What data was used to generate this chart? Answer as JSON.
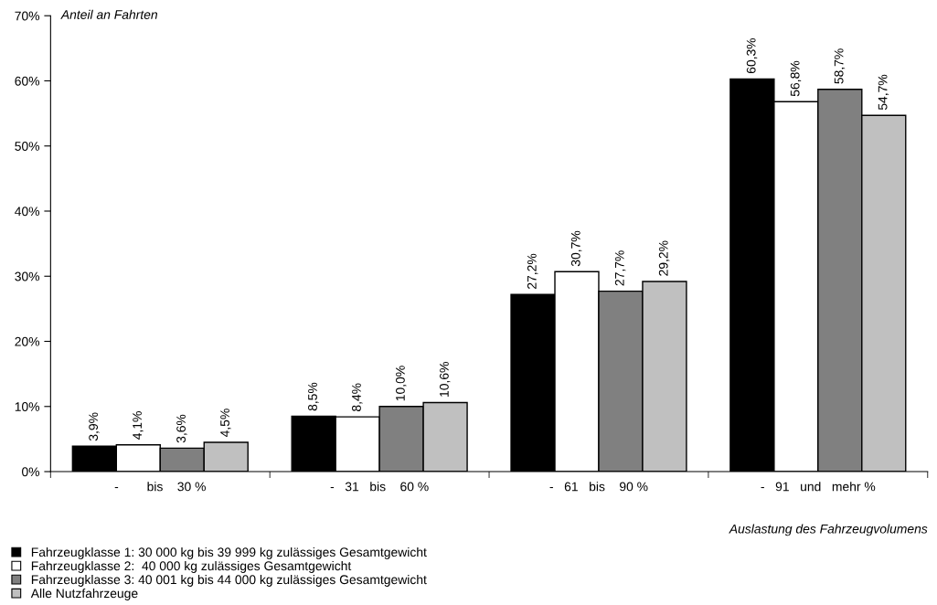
{
  "chart_data": {
    "type": "bar",
    "ylabel": "Anteil an Fahrten",
    "xlabel": "Auslastung des Fahrzeugvolumens",
    "categories": [
      "-        bis    30 %",
      "-   31   bis    60 %",
      "-   61   bis    90 %",
      "-   91   und   mehr %"
    ],
    "series": [
      {
        "name": "Fahrzeugklasse 1: 30 000 kg bis 39 999 kg zulässiges Gesamtgewicht",
        "color": "#000000",
        "values": [
          3.9,
          8.5,
          27.2,
          60.3
        ],
        "value_labels": [
          "3,9%",
          "8,5%",
          "27,2%",
          "60,3%"
        ]
      },
      {
        "name": "Fahrzeugklasse 2:  40 000 kg zulässiges Gesamtgewicht",
        "color": "#ffffff",
        "values": [
          4.1,
          8.4,
          30.7,
          56.8
        ],
        "value_labels": [
          "4,1%",
          "8,4%",
          "30,7%",
          "56,8%"
        ]
      },
      {
        "name": "Fahrzeugklasse 3: 40 001 kg bis 44 000 kg zulässiges Gesamtgewicht",
        "color": "#808080",
        "values": [
          3.6,
          10.0,
          27.7,
          58.7
        ],
        "value_labels": [
          "3,6%",
          "10,0%",
          "27,7%",
          "58,7%"
        ]
      },
      {
        "name": "Alle Nutzfahrzeuge",
        "color": "#c0c0c0",
        "values": [
          4.5,
          10.6,
          29.2,
          54.7
        ],
        "value_labels": [
          "4,5%",
          "10,6%",
          "29,2%",
          "54,7%"
        ]
      }
    ],
    "ylim": [
      0,
      70
    ],
    "yticks": [
      {
        "value": 0,
        "label": "0%"
      },
      {
        "value": 10,
        "label": "10%"
      },
      {
        "value": 20,
        "label": "20%"
      },
      {
        "value": 30,
        "label": "30%"
      },
      {
        "value": 40,
        "label": "40%"
      },
      {
        "value": 50,
        "label": "50%"
      },
      {
        "value": 60,
        "label": "60%"
      },
      {
        "value": 70,
        "label": "70%"
      }
    ],
    "grid": false,
    "legend": "bottom left"
  }
}
